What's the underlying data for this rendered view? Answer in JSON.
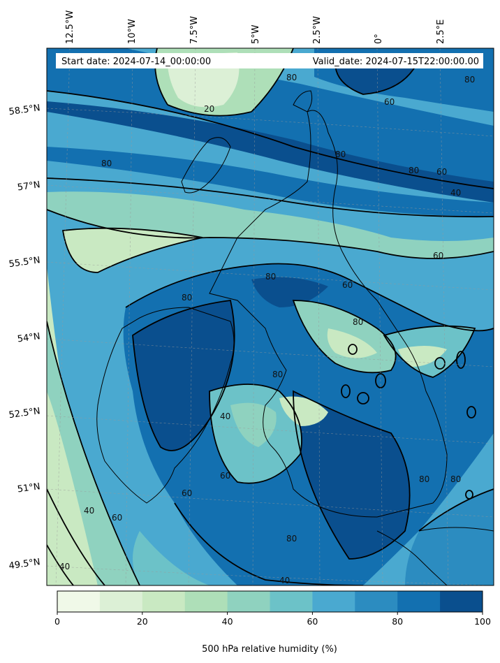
{
  "map": {
    "start_date": "Start date: 2024-07-14_00:00:00",
    "valid_date": "Valid_date: 2024-07-15T22:00:00.00",
    "lon_labels": [
      "12.5°W",
      "10°W",
      "7.5°W",
      "5°W",
      "2.5°W",
      "0°",
      "2.5°E"
    ],
    "lat_labels": [
      "58.5°N",
      "57°N",
      "55.5°N",
      "54°N",
      "52.5°N",
      "51°N",
      "49.5°N"
    ],
    "contour_labels": [
      "20",
      "40",
      "60",
      "80"
    ],
    "colorbar": {
      "label": "500 hPa relative humidity (%)",
      "ticks": [
        "0",
        "20",
        "40",
        "60",
        "80",
        "100"
      ],
      "min": 0,
      "max": 100,
      "colors": [
        "#f0f9e8",
        "#dcf0d6",
        "#c9e9c2",
        "#aedfb8",
        "#8fd2bf",
        "#6cc2c8",
        "#4aa9d0",
        "#2c8cc0",
        "#1370b0",
        "#0a4f8e"
      ]
    }
  }
}
